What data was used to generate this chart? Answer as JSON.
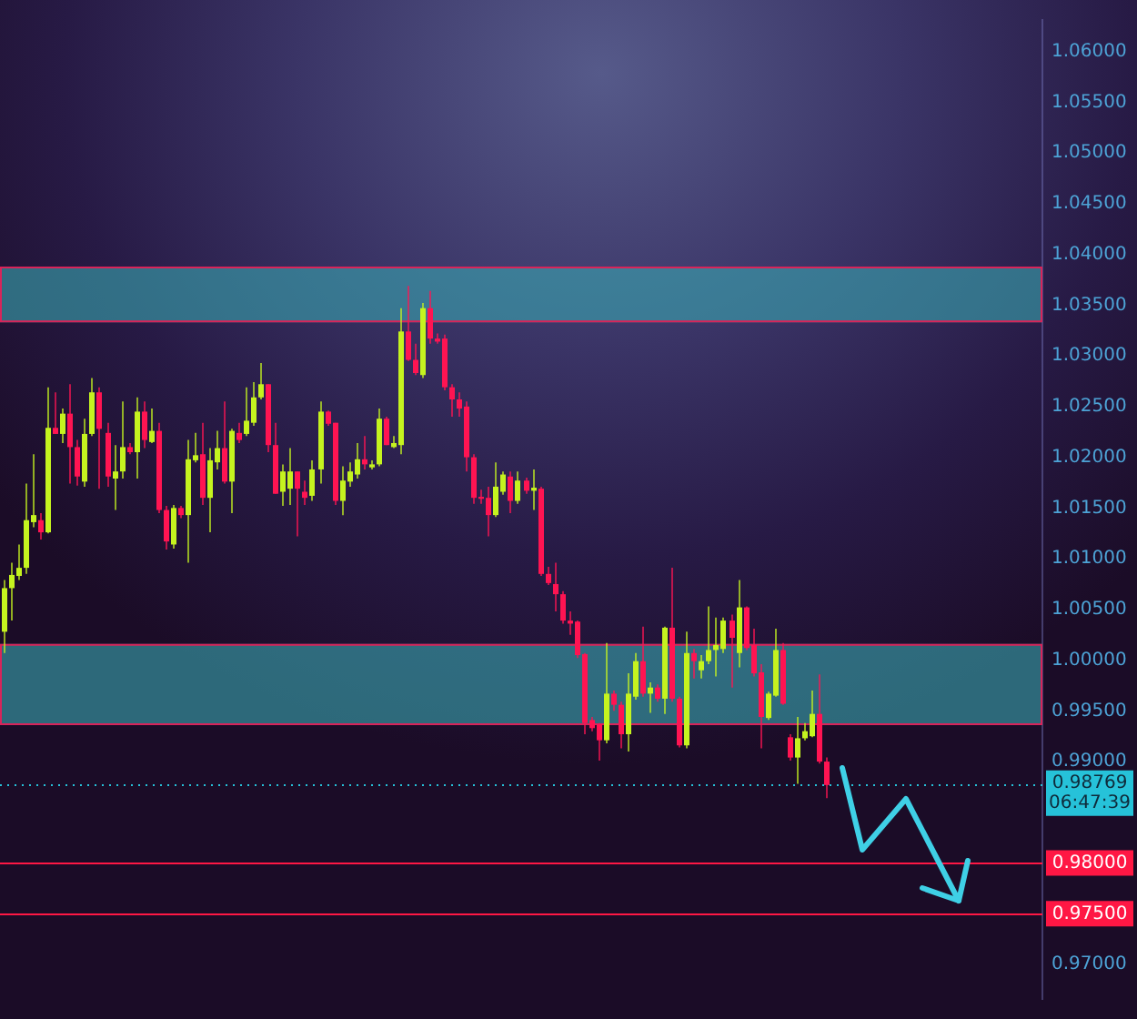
{
  "chart_data": {
    "type": "candlestick",
    "categories": [
      null,
      null,
      null,
      null,
      null,
      null,
      null,
      null,
      null,
      null,
      null,
      null,
      null,
      null,
      null,
      null,
      null,
      null,
      null,
      null,
      null,
      null,
      null,
      null,
      null,
      null,
      null,
      null,
      null,
      null,
      null,
      null,
      null,
      null,
      null,
      null,
      null,
      null,
      null,
      null,
      null,
      null,
      null,
      null,
      null,
      null,
      null,
      null,
      null,
      null,
      null,
      null,
      null,
      null,
      null,
      null,
      null,
      null,
      null,
      null,
      null,
      null,
      null,
      null,
      null,
      null,
      null,
      null,
      null,
      null,
      null,
      null,
      null,
      null,
      null,
      null,
      null,
      null,
      null,
      null,
      null,
      null,
      null,
      null,
      null,
      null,
      null,
      null,
      null,
      null,
      null,
      null,
      null,
      null,
      null,
      null,
      null,
      null,
      null,
      null,
      null,
      null,
      null,
      null,
      null,
      null,
      null,
      null,
      null,
      null,
      null,
      null,
      null,
      null,
      null,
      null,
      null,
      null,
      null,
      null,
      null,
      null,
      null,
      null,
      null,
      null,
      null,
      null,
      null,
      null,
      null,
      null,
      null,
      null,
      null,
      null,
      null,
      null,
      null,
      null,
      null,
      null
    ],
    "ohlc": [
      [
        1.0028,
        1.0079,
        1.0007,
        1.0071
      ],
      [
        1.0071,
        1.0096,
        1.0039,
        1.0084
      ],
      [
        1.0083,
        1.0114,
        1.0079,
        1.0091
      ],
      [
        1.0091,
        1.0174,
        1.0085,
        1.0138
      ],
      [
        1.0136,
        1.0203,
        1.0131,
        1.0143
      ],
      [
        1.0138,
        1.0145,
        1.0119,
        1.0126
      ],
      [
        1.0126,
        1.0269,
        1.0125,
        1.0229
      ],
      [
        1.0229,
        1.0264,
        1.0223,
        1.0223
      ],
      [
        1.0223,
        1.0248,
        1.0214,
        1.0243
      ],
      [
        1.0243,
        1.0272,
        1.0174,
        1.021
      ],
      [
        1.021,
        1.0217,
        1.0172,
        1.0181
      ],
      [
        1.0176,
        1.0238,
        1.0171,
        1.0223
      ],
      [
        1.0223,
        1.0278,
        1.0221,
        1.0264
      ],
      [
        1.0264,
        1.0269,
        1.0169,
        1.0228
      ],
      [
        1.0224,
        1.0234,
        1.0171,
        1.0181
      ],
      [
        1.0179,
        1.0212,
        1.0148,
        1.0186
      ],
      [
        1.0186,
        1.0255,
        1.0179,
        1.021
      ],
      [
        1.021,
        1.0214,
        1.0203,
        1.0205
      ],
      [
        1.0205,
        1.0259,
        1.0179,
        1.0245
      ],
      [
        1.0245,
        1.0255,
        1.0209,
        1.0217
      ],
      [
        1.0215,
        1.0248,
        1.0214,
        1.0226
      ],
      [
        1.0226,
        1.0234,
        1.0145,
        1.0148
      ],
      [
        1.0148,
        1.0152,
        1.0109,
        1.0117
      ],
      [
        1.0114,
        1.0153,
        1.011,
        1.015
      ],
      [
        1.015,
        1.0152,
        1.014,
        1.0143
      ],
      [
        1.0143,
        1.0217,
        1.0096,
        1.0198
      ],
      [
        1.0197,
        1.0224,
        1.0195,
        1.0202
      ],
      [
        1.0203,
        1.0234,
        1.0153,
        1.016
      ],
      [
        1.016,
        1.0209,
        1.0126,
        1.0197
      ],
      [
        1.0195,
        1.0226,
        1.0188,
        1.0209
      ],
      [
        1.0209,
        1.0255,
        1.0174,
        1.0176
      ],
      [
        1.0176,
        1.0228,
        1.0145,
        1.0226
      ],
      [
        1.0224,
        1.0234,
        1.0214,
        1.0217
      ],
      [
        1.0223,
        1.0269,
        1.0221,
        1.0236
      ],
      [
        1.0234,
        1.0274,
        1.0231,
        1.0259
      ],
      [
        1.0259,
        1.0293,
        1.0257,
        1.0272
      ],
      [
        1.0272,
        1.0272,
        1.0205,
        1.0212
      ],
      [
        1.0212,
        1.0234,
        1.0164,
        1.0164
      ],
      [
        1.0166,
        1.0193,
        1.0152,
        1.0186
      ],
      [
        1.0169,
        1.0209,
        1.0153,
        1.0186
      ],
      [
        1.0186,
        1.0186,
        1.0122,
        1.0169
      ],
      [
        1.0166,
        1.0177,
        1.0153,
        1.016
      ],
      [
        1.0162,
        1.0197,
        1.0157,
        1.0188
      ],
      [
        1.0188,
        1.0255,
        1.0174,
        1.0245
      ],
      [
        1.0245,
        1.0246,
        1.0231,
        1.0233
      ],
      [
        1.0234,
        1.0234,
        1.0153,
        1.0157
      ],
      [
        1.0157,
        1.0191,
        1.0143,
        1.0177
      ],
      [
        1.0176,
        1.0195,
        1.0171,
        1.0186
      ],
      [
        1.0183,
        1.0214,
        1.0179,
        1.0198
      ],
      [
        1.0198,
        1.0221,
        1.0188,
        1.0193
      ],
      [
        1.019,
        1.0197,
        1.0188,
        1.0193
      ],
      [
        1.0193,
        1.0248,
        1.0191,
        1.0238
      ],
      [
        1.0238,
        1.024,
        1.0212,
        1.0212
      ],
      [
        1.021,
        1.0221,
        1.0209,
        1.0214
      ],
      [
        1.0212,
        1.0347,
        1.0203,
        1.0324
      ],
      [
        1.0324,
        1.0369,
        1.0295,
        1.0296
      ],
      [
        1.0296,
        1.0312,
        1.0281,
        1.0283
      ],
      [
        1.0281,
        1.0352,
        1.0278,
        1.0347
      ],
      [
        1.0347,
        1.0364,
        1.0312,
        1.0317
      ],
      [
        1.0317,
        1.0322,
        1.0312,
        1.0314
      ],
      [
        1.0317,
        1.0321,
        1.0266,
        1.0269
      ],
      [
        1.0269,
        1.0272,
        1.024,
        1.0257
      ],
      [
        1.0257,
        1.0264,
        1.024,
        1.0248
      ],
      [
        1.025,
        1.0255,
        1.0186,
        1.02
      ],
      [
        1.02,
        1.0203,
        1.0154,
        1.016
      ],
      [
        1.0161,
        1.0168,
        1.0154,
        1.0159
      ],
      [
        1.016,
        1.0171,
        1.0122,
        1.0143
      ],
      [
        1.0143,
        1.0195,
        1.0141,
        1.0171
      ],
      [
        1.0166,
        1.0186,
        1.0163,
        1.0183
      ],
      [
        1.0181,
        1.0186,
        1.0145,
        1.0157
      ],
      [
        1.0157,
        1.0186,
        1.0154,
        1.0177
      ],
      [
        1.0177,
        1.018,
        1.0164,
        1.0167
      ],
      [
        1.0167,
        1.0188,
        1.0148,
        1.017
      ],
      [
        1.0169,
        1.0171,
        1.0083,
        1.0085
      ],
      [
        1.0085,
        1.0092,
        1.0074,
        1.0076
      ],
      [
        1.0075,
        1.0096,
        1.0048,
        1.0065
      ],
      [
        1.0065,
        1.0068,
        1.0036,
        1.0039
      ],
      [
        1.0039,
        1.0048,
        1.0025,
        1.0036
      ],
      [
        1.0038,
        1.0039,
        1.0002,
        1.0005
      ],
      [
        1.0006,
        1.0007,
        0.9927,
        0.9938
      ],
      [
        0.9941,
        0.9944,
        0.993,
        0.9933
      ],
      [
        0.9937,
        0.9938,
        0.9901,
        0.9921
      ],
      [
        0.9921,
        1.0017,
        0.9918,
        0.9967
      ],
      [
        0.9967,
        0.997,
        0.995,
        0.9956
      ],
      [
        0.9956,
        0.9959,
        0.9913,
        0.9927
      ],
      [
        0.9927,
        0.9987,
        0.991,
        0.9967
      ],
      [
        0.9964,
        1.0007,
        0.9961,
        0.9999
      ],
      [
        0.9999,
        1.0033,
        0.9964,
        0.9967
      ],
      [
        0.9967,
        0.9978,
        0.9948,
        0.9973
      ],
      [
        0.9973,
        0.9976,
        0.9959,
        0.9962
      ],
      [
        0.9962,
        1.0033,
        0.9947,
        1.0032
      ],
      [
        1.0032,
        1.0091,
        0.9959,
        0.9962
      ],
      [
        0.9962,
        0.9964,
        0.9914,
        0.9916
      ],
      [
        0.9916,
        1.0028,
        0.9913,
        1.0007
      ],
      [
        1.0007,
        1.0011,
        0.9982,
        0.9999
      ],
      [
        0.999,
        1.0005,
        0.9982,
        0.9999
      ],
      [
        0.9999,
        1.0053,
        0.9996,
        1.001
      ],
      [
        1.001,
        1.0042,
        0.9984,
        1.0015
      ],
      [
        1.0011,
        1.0042,
        1.0007,
        1.0039
      ],
      [
        1.0039,
        1.0045,
        0.9973,
        1.0022
      ],
      [
        1.0007,
        1.0079,
        0.9993,
        1.0052
      ],
      [
        1.0052,
        1.0053,
        1.001,
        1.0012
      ],
      [
        1.0015,
        1.0031,
        0.9984,
        0.9987
      ],
      [
        0.9988,
        0.9996,
        0.9913,
        0.9944
      ],
      [
        0.9943,
        0.9969,
        0.9941,
        0.9967
      ],
      [
        0.9965,
        1.0031,
        0.9964,
        1.001
      ],
      [
        1.001,
        1.0017,
        0.9956,
        0.9957
      ],
      [
        0.9924,
        0.9927,
        0.9901,
        0.9904
      ],
      [
        0.9904,
        0.9944,
        0.9878,
        0.9923
      ],
      [
        0.9923,
        0.9938,
        0.9921,
        0.993
      ],
      [
        0.9925,
        0.997,
        0.9924,
        0.9947
      ],
      [
        0.9947,
        0.9986,
        0.9898,
        0.99
      ],
      [
        0.99,
        0.9904,
        0.9864,
        0.98769
      ],
      null,
      null,
      null,
      null,
      null,
      null,
      null,
      null,
      null,
      null,
      null,
      null,
      null,
      null,
      null,
      null,
      null,
      null,
      null,
      null,
      null,
      null,
      null,
      null,
      null,
      null,
      null,
      null,
      null
    ],
    "colors": [
      "#c5f31f",
      "#c5f31f",
      "#c5f31f",
      "#c5f31f",
      "#c5f31f",
      "#ff1452",
      "#c5f31f",
      "#ff1452",
      "#c5f31f",
      "#ff1452",
      "#ff1452",
      "#c5f31f",
      "#c5f31f",
      "#ff1452",
      "#ff1452",
      "#c5f31f",
      "#c5f31f",
      "#ff1452",
      "#c5f31f",
      "#ff1452",
      "#c5f31f",
      "#ff1452",
      "#ff1452",
      "#c5f31f",
      "#ff1452",
      "#c5f31f",
      "#c5f31f",
      "#ff1452",
      "#c5f31f",
      "#c5f31f",
      "#ff1452",
      "#c5f31f",
      "#ff1452",
      "#c5f31f",
      "#c5f31f",
      "#c5f31f",
      "#ff1452",
      "#ff1452",
      "#c5f31f",
      "#c5f31f",
      "#ff1452",
      "#ff1452",
      "#c5f31f",
      "#c5f31f",
      "#ff1452",
      "#ff1452",
      "#c5f31f",
      "#c5f31f",
      "#c5f31f",
      "#ff1452",
      "#c5f31f",
      "#c5f31f",
      "#ff1452",
      "#c5f31f",
      "#c5f31f",
      "#ff1452",
      "#ff1452",
      "#c5f31f",
      "#ff1452",
      "#ff1452",
      "#ff1452",
      "#ff1452",
      "#ff1452",
      "#ff1452",
      "#ff1452",
      "#ff1452",
      "#ff1452",
      "#c5f31f",
      "#c5f31f",
      "#ff1452",
      "#c5f31f",
      "#ff1452",
      "#c5f31f",
      "#ff1452",
      "#ff1452",
      "#ff1452",
      "#ff1452",
      "#ff1452",
      "#ff1452",
      "#ff1452",
      "#ff1452",
      "#ff1452",
      "#c5f31f",
      "#ff1452",
      "#ff1452",
      "#c5f31f",
      "#c5f31f",
      "#ff1452",
      "#c5f31f",
      "#ff1452",
      "#c5f31f",
      "#ff1452",
      "#ff1452",
      "#c5f31f",
      "#ff1452",
      "#c5f31f",
      "#c5f31f",
      "#c5f31f",
      "#c5f31f",
      "#ff1452",
      "#c5f31f",
      "#ff1452",
      "#ff1452",
      "#ff1452",
      "#c5f31f",
      "#c5f31f",
      "#ff1452",
      "#ff1452",
      "#c5f31f",
      "#c5f31f",
      "#c5f31f",
      "#ff1452",
      "#ff1452",
      null,
      null,
      null,
      null,
      null,
      null,
      null,
      null,
      null,
      null,
      null,
      null,
      null,
      null,
      null,
      null,
      null,
      null,
      null,
      null,
      null,
      null,
      null,
      null,
      null,
      null,
      null,
      null,
      null
    ],
    "ylim": [
      0.9666,
      1.0631
    ],
    "yticks": [
      {
        "value": 0.97,
        "label": "0.97000"
      },
      {
        "value": 0.975,
        "label": null
      },
      {
        "value": 0.98,
        "label": null
      },
      {
        "value": 0.99,
        "label": "0.99000"
      },
      {
        "value": 0.995,
        "label": "0.99500"
      },
      {
        "value": 1.0,
        "label": "1.00000"
      },
      {
        "value": 1.005,
        "label": "1.00500"
      },
      {
        "value": 1.01,
        "label": "1.01000"
      },
      {
        "value": 1.015,
        "label": "1.01500"
      },
      {
        "value": 1.02,
        "label": "1.02000"
      },
      {
        "value": 1.025,
        "label": "1.02500"
      },
      {
        "value": 1.03,
        "label": "1.03000"
      },
      {
        "value": 1.035,
        "label": "1.03500"
      },
      {
        "value": 1.04,
        "label": "1.04000"
      },
      {
        "value": 1.045,
        "label": "1.04500"
      },
      {
        "value": 1.05,
        "label": "1.05000"
      },
      {
        "value": 1.055,
        "label": "1.05500"
      },
      {
        "value": 1.06,
        "label": "1.06000"
      }
    ],
    "tick_labels": "y",
    "bands": [
      {
        "axis": "y",
        "from": 1.0333,
        "to": 1.0388,
        "color": "#3aa9b3"
      },
      {
        "axis": "y",
        "from": 0.9936,
        "to": 1.0016,
        "color": "#3aa9b3"
      }
    ],
    "ref_lines": [
      {
        "axis": "y",
        "value": 0.98769,
        "label": "0.98769\n06:47:39",
        "color": "#26c2d9",
        "line_style": "dotted"
      },
      {
        "axis": "y",
        "value": 0.98,
        "label": "0.98000",
        "color": "#ff1744",
        "line_style": "solid"
      },
      {
        "axis": "y",
        "value": 0.975,
        "label": "0.97500",
        "color": "#ff1744",
        "line_style": "solid"
      }
    ]
  }
}
